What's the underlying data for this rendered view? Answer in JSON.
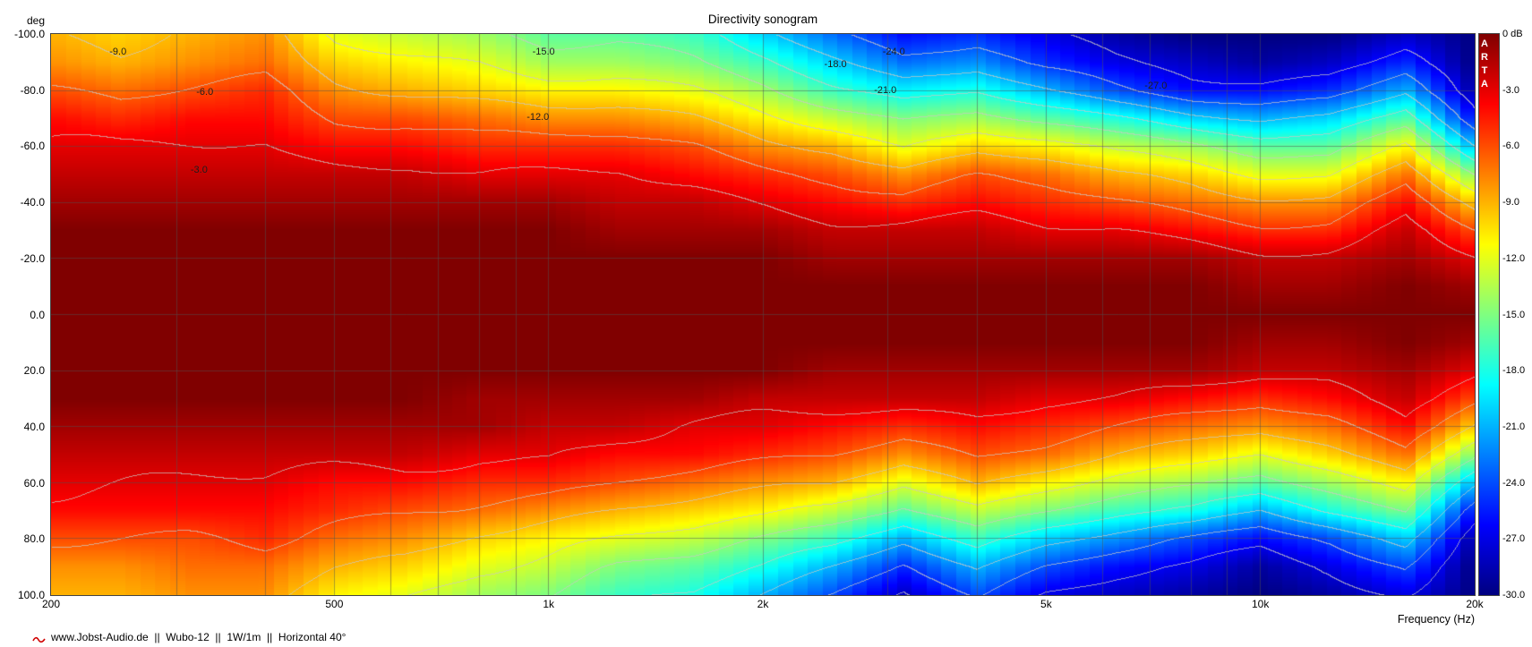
{
  "title": "Directivity sonogram",
  "y_axis": {
    "unit_label": "deg",
    "ticks": [
      "-100.0",
      "-80.0",
      "-60.0",
      "-40.0",
      "-20.0",
      "0.0",
      "20.0",
      "40.0",
      "60.0",
      "80.0",
      "100.0"
    ]
  },
  "x_axis": {
    "label": "Frequency (Hz)",
    "ticks": [
      {
        "text": "200",
        "hz": 200
      },
      {
        "text": "500",
        "hz": 500
      },
      {
        "text": "1k",
        "hz": 1000
      },
      {
        "text": "2k",
        "hz": 2000
      },
      {
        "text": "5k",
        "hz": 5000
      },
      {
        "text": "10k",
        "hz": 10000
      },
      {
        "text": "20k",
        "hz": 20000
      }
    ]
  },
  "colorbar": {
    "labels": [
      "0 dB",
      "-3.0",
      "-6.0",
      "-9.0",
      "-12.0",
      "-15.0",
      "-18.0",
      "-21.0",
      "-24.0",
      "-27.0",
      "-30.0"
    ],
    "watermark": "ARTA"
  },
  "footer": "www.Jobst-Audio.de  ||  Wubo-12  ||  1W/1m  ||  Horizontal 40°",
  "chart_data": {
    "type": "heatmap",
    "title": "Directivity sonogram",
    "xlabel": "Frequency (Hz)",
    "ylabel": "deg",
    "x_scale": "log",
    "x_range_hz": [
      200,
      20000
    ],
    "y_range_deg": [
      -100,
      100
    ],
    "db_min": -30,
    "db_max": 0,
    "contour_step_db": 3,
    "render_bins": 96,
    "frequencies": [
      200,
      250,
      315,
      400,
      500,
      630,
      800,
      1000,
      1250,
      1600,
      2000,
      2500,
      3150,
      4000,
      5000,
      6300,
      8000,
      10000,
      12500,
      16000,
      20000
    ],
    "angles_deg": [
      -100,
      -90,
      -80,
      -70,
      -60,
      -50,
      -40,
      -30,
      -20,
      -10,
      0,
      10,
      20,
      30,
      40,
      50,
      60,
      70,
      80,
      90,
      100
    ],
    "values": [
      [
        -9,
        -10,
        -9,
        -8,
        -12,
        -13,
        -14,
        -16,
        -16,
        -17,
        -20,
        -23,
        -26,
        -25,
        -27,
        -29,
        -30,
        -30,
        -30,
        -28,
        -30
      ],
      [
        -8,
        -9,
        -8,
        -7,
        -10,
        -11,
        -12,
        -14,
        -14,
        -15,
        -17,
        -20,
        -23,
        -22,
        -25,
        -27,
        -28,
        -29,
        -28,
        -25,
        -30
      ],
      [
        -6,
        -7,
        -6,
        -5,
        -8,
        -9,
        -10,
        -11,
        -11,
        -12,
        -14,
        -17,
        -19,
        -18,
        -21,
        -24,
        -26,
        -26,
        -25,
        -21,
        -29
      ],
      [
        -4,
        -5,
        -4,
        -4,
        -6,
        -6,
        -7,
        -8,
        -8,
        -9,
        -11,
        -13,
        -15,
        -14,
        -16,
        -18,
        -20,
        -21,
        -20,
        -16,
        -26
      ],
      [
        -3,
        -3,
        -3,
        -3,
        -4,
        -4,
        -5,
        -5,
        -5,
        -6,
        -8,
        -9,
        -12,
        -10,
        -11,
        -13,
        -14,
        -16,
        -16,
        -11,
        -21
      ],
      [
        -2,
        -2,
        -2,
        -2,
        -2,
        -2,
        -3,
        -3,
        -3,
        -4,
        -5,
        -6,
        -8,
        -6,
        -7,
        -9,
        -10,
        -12,
        -12,
        -7,
        -15
      ],
      [
        -1,
        -1,
        -1,
        -1,
        -1,
        -1,
        -1,
        -1,
        -2,
        -2,
        -3,
        -4,
        -5,
        -4,
        -5,
        -6,
        -7,
        -8,
        -8,
        -4,
        -10
      ],
      [
        0,
        0,
        0,
        0,
        0,
        0,
        0,
        0,
        -1,
        -1,
        -1,
        -2,
        -2,
        -2,
        -3,
        -3,
        -4,
        -5,
        -5,
        -2,
        -6
      ],
      [
        0,
        0,
        0,
        0,
        0,
        0,
        0,
        0,
        0,
        0,
        0,
        -1,
        -1,
        -1,
        -1,
        -1,
        -1,
        -2,
        -2,
        -1,
        -3
      ],
      [
        0,
        0,
        0,
        0,
        0,
        0,
        0,
        0,
        0,
        0,
        0,
        0,
        0,
        0,
        0,
        0,
        0,
        -1,
        -1,
        0,
        -1
      ],
      [
        0,
        0,
        0,
        0,
        0,
        0,
        0,
        0,
        0,
        0,
        0,
        0,
        0,
        0,
        0,
        0,
        0,
        0,
        0,
        0,
        0
      ],
      [
        0,
        0,
        0,
        0,
        0,
        0,
        0,
        0,
        0,
        0,
        0,
        0,
        0,
        0,
        0,
        0,
        0,
        -1,
        -1,
        0,
        -1
      ],
      [
        0,
        0,
        0,
        0,
        0,
        0,
        0,
        0,
        0,
        0,
        0,
        -1,
        -1,
        -1,
        -1,
        -1,
        -1,
        -2,
        -2,
        -1,
        -3
      ],
      [
        0,
        0,
        0,
        0,
        0,
        0,
        -1,
        -1,
        -1,
        -1,
        -2,
        -2,
        -2,
        -2,
        -3,
        -3,
        -4,
        -5,
        -4,
        -2,
        -6
      ],
      [
        -1,
        -1,
        -1,
        -1,
        -1,
        -1,
        -1,
        -2,
        -2,
        -3,
        -3,
        -4,
        -5,
        -4,
        -5,
        -6,
        -7,
        -8,
        -7,
        -4,
        -10
      ],
      [
        -2,
        -2,
        -2,
        -2,
        -2,
        -2,
        -3,
        -3,
        -4,
        -4,
        -5,
        -6,
        -8,
        -6,
        -7,
        -9,
        -10,
        -12,
        -10,
        -7,
        -15
      ],
      [
        -3,
        -3,
        -3,
        -3,
        -4,
        -4,
        -5,
        -5,
        -6,
        -7,
        -8,
        -9,
        -12,
        -9,
        -11,
        -13,
        -14,
        -16,
        -14,
        -11,
        -21
      ],
      [
        -4,
        -4,
        -4,
        -4,
        -5,
        -6,
        -7,
        -8,
        -9,
        -10,
        -11,
        -13,
        -16,
        -13,
        -15,
        -17,
        -18,
        -21,
        -18,
        -15,
        -26
      ],
      [
        -6,
        -6,
        -6,
        -5,
        -7,
        -8,
        -10,
        -11,
        -12,
        -13,
        -15,
        -17,
        -21,
        -17,
        -20,
        -22,
        -24,
        -26,
        -24,
        -20,
        -29
      ],
      [
        -8,
        -8,
        -7,
        -7,
        -9,
        -10,
        -12,
        -13,
        -15,
        -16,
        -18,
        -21,
        -25,
        -21,
        -24,
        -26,
        -27,
        -29,
        -27,
        -24,
        -30
      ],
      [
        -9,
        -9,
        -8,
        -8,
        -11,
        -12,
        -14,
        -15,
        -17,
        -18,
        -21,
        -24,
        -28,
        -24,
        -27,
        -28,
        -29,
        -30,
        -29,
        -27,
        -30
      ]
    ],
    "colormap_stops": [
      {
        "t": 0.0,
        "color": "#000080"
      },
      {
        "t": 0.125,
        "color": "#0000FF"
      },
      {
        "t": 0.375,
        "color": "#00FFFF"
      },
      {
        "t": 0.625,
        "color": "#FFFF00"
      },
      {
        "t": 0.875,
        "color": "#FF0000"
      },
      {
        "t": 1.0,
        "color": "#800000"
      }
    ],
    "grid": {
      "freq_lines_hz": [
        300,
        400,
        500,
        600,
        700,
        800,
        900,
        1000,
        2000,
        3000,
        4000,
        5000,
        6000,
        7000,
        8000,
        9000,
        10000
      ],
      "angle_lines_deg": [
        -80,
        -60,
        -40,
        -20,
        0,
        20,
        40,
        60,
        80
      ]
    },
    "contour_labels": [
      {
        "text": "-9.0",
        "x_pct": 4.7,
        "y_pct": 3.2
      },
      {
        "text": "-6.0",
        "x_pct": 10.8,
        "y_pct": 10.3
      },
      {
        "text": "-3.0",
        "x_pct": 10.4,
        "y_pct": 24.2
      },
      {
        "text": "-15.0",
        "x_pct": 34.6,
        "y_pct": 3.2
      },
      {
        "text": "-12.0",
        "x_pct": 34.2,
        "y_pct": 14.9
      },
      {
        "text": "-18.0",
        "x_pct": 55.1,
        "y_pct": 5.5
      },
      {
        "text": "-24.0",
        "x_pct": 59.2,
        "y_pct": 3.2
      },
      {
        "text": "-21.0",
        "x_pct": 58.6,
        "y_pct": 10.1
      },
      {
        "text": "-27.0",
        "x_pct": 77.6,
        "y_pct": 9.2
      }
    ]
  }
}
